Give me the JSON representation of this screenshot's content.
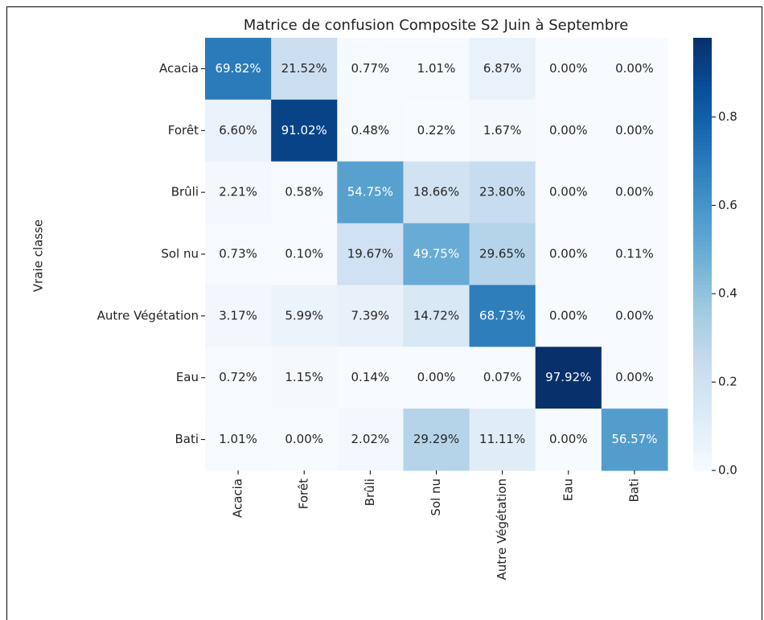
{
  "chart_data": {
    "type": "heatmap",
    "title": "Matrice de confusion Composite S2 Juin à Septembre",
    "ylabel": "Vraie classe",
    "x_categories": [
      "Acacia",
      "Forêt",
      "Brûli",
      "Sol nu",
      "Autre Végétation",
      "Eau",
      "Bati"
    ],
    "y_categories": [
      "Acacia",
      "Forêt",
      "Brûli",
      "Sol nu",
      "Autre Végétation",
      "Eau",
      "Bati"
    ],
    "z": [
      [
        0.6982,
        0.2152,
        0.0077,
        0.0101,
        0.0687,
        0,
        0
      ],
      [
        0.066,
        0.9102,
        0.0048,
        0.0022,
        0.0167,
        0,
        0
      ],
      [
        0.0221,
        0.0058,
        0.5475,
        0.1866,
        0.238,
        0,
        0
      ],
      [
        0.0073,
        0.001,
        0.1967,
        0.4975,
        0.2965,
        0,
        0.0011
      ],
      [
        0.0317,
        0.0599,
        0.0739,
        0.1472,
        0.6873,
        0,
        0
      ],
      [
        0.0072,
        0.0115,
        0.0014,
        0,
        0.0007,
        0.9792,
        0
      ],
      [
        0.0101,
        0,
        0.0202,
        0.2929,
        0.1111,
        0,
        0.5657
      ]
    ],
    "value_labels": [
      [
        "69.82%",
        "21.52%",
        "0.77%",
        "1.01%",
        "6.87%",
        "0.00%",
        "0.00%"
      ],
      [
        "6.60%",
        "91.02%",
        "0.48%",
        "0.22%",
        "1.67%",
        "0.00%",
        "0.00%"
      ],
      [
        "2.21%",
        "0.58%",
        "54.75%",
        "18.66%",
        "23.80%",
        "0.00%",
        "0.00%"
      ],
      [
        "0.73%",
        "0.10%",
        "19.67%",
        "49.75%",
        "29.65%",
        "0.00%",
        "0.11%"
      ],
      [
        "3.17%",
        "5.99%",
        "7.39%",
        "14.72%",
        "68.73%",
        "0.00%",
        "0.00%"
      ],
      [
        "0.72%",
        "1.15%",
        "0.14%",
        "0.00%",
        "0.07%",
        "97.92%",
        "0.00%"
      ],
      [
        "1.01%",
        "0.00%",
        "2.02%",
        "29.29%",
        "11.11%",
        "0.00%",
        "56.57%"
      ]
    ],
    "clim": [
      0,
      0.9792
    ],
    "cticks": [
      {
        "value": 0,
        "label": "0.0"
      },
      0.2,
      0.4,
      0.6,
      0.8
    ],
    "colors": [
      "#f7fbff",
      "#deebf7",
      "#c6dbef",
      "#9ecae1",
      "#6baed6",
      "#4292c6",
      "#2171b5",
      "#08519c",
      "#08306b"
    ]
  }
}
